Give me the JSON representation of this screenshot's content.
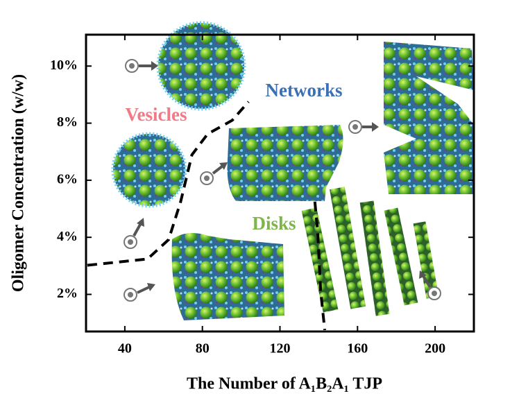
{
  "chart_data": {
    "type": "phase-diagram",
    "x_label": "The Number of A₁B₂A₁ TJP",
    "y_label": "Oligomer Concentration (w/w)",
    "xlim": [
      20,
      220
    ],
    "xticks": [
      40,
      80,
      120,
      160,
      200
    ],
    "ylim": [
      0.7,
      11.1
    ],
    "yticks": [
      {
        "value": 2,
        "label": "2%"
      },
      {
        "value": 4,
        "label": "4%"
      },
      {
        "value": 6,
        "label": "6%"
      },
      {
        "value": 8,
        "label": "8%"
      },
      {
        "value": 10,
        "label": "10%"
      }
    ],
    "regions": [
      {
        "name": "Vesicles",
        "color": "#f07b86"
      },
      {
        "name": "Networks",
        "color": "#3b70b4"
      },
      {
        "name": "Disks",
        "color": "#7db548"
      }
    ],
    "boundaries": [
      {
        "x": [
          20.7,
          51.7,
          62.6,
          68.8,
          74.6,
          82.7,
          95.4,
          103.8
        ],
        "y": [
          3.02,
          3.24,
          3.92,
          5.25,
          6.89,
          7.62,
          8.1,
          8.75
        ]
      },
      {
        "x": [
          138.0,
          139.5,
          141.0,
          143.1
        ],
        "y": [
          5.25,
          4.16,
          2.1,
          0.75
        ]
      }
    ]
  }
}
